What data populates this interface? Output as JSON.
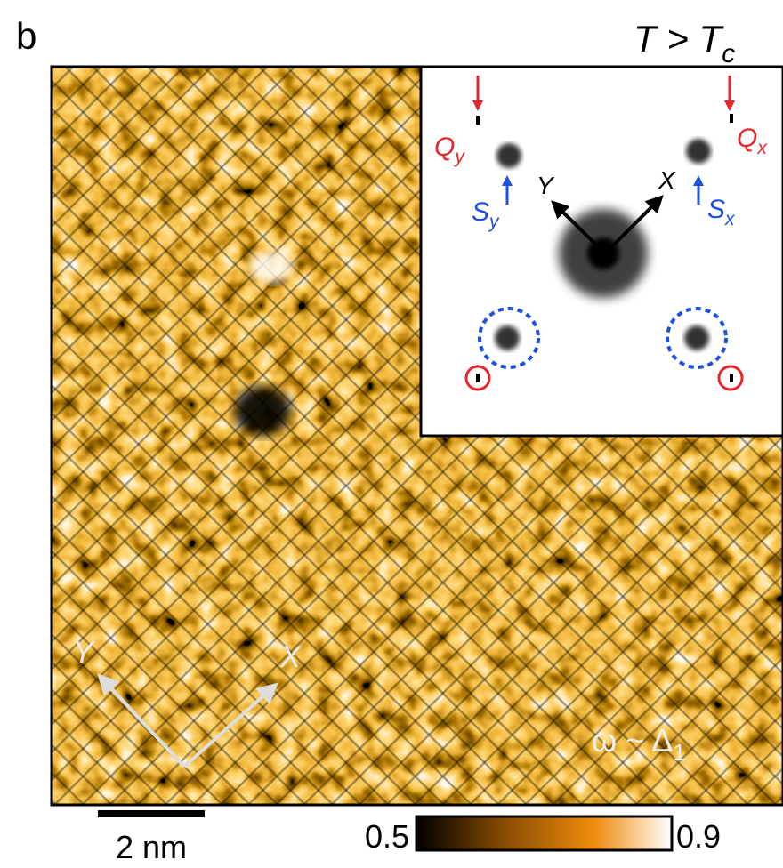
{
  "panel_label": "b",
  "condition": {
    "text": "T > T",
    "subscript": "c"
  },
  "inset": {
    "q_y": {
      "text": "Q",
      "subscript": "y"
    },
    "q_x": {
      "text": "Q",
      "subscript": "x"
    },
    "s_y": {
      "text": "S",
      "subscript": "y"
    },
    "s_x": {
      "text": "S",
      "subscript": "x"
    },
    "axis_y": "Y",
    "axis_x": "X"
  },
  "main": {
    "axis_y": "Y",
    "axis_x": "X",
    "energy": {
      "text": "ω ~ Δ",
      "subscript": "1"
    }
  },
  "scale_bar": "2 nm",
  "colorbar": {
    "min": 0.5,
    "max": 0.9
  }
}
